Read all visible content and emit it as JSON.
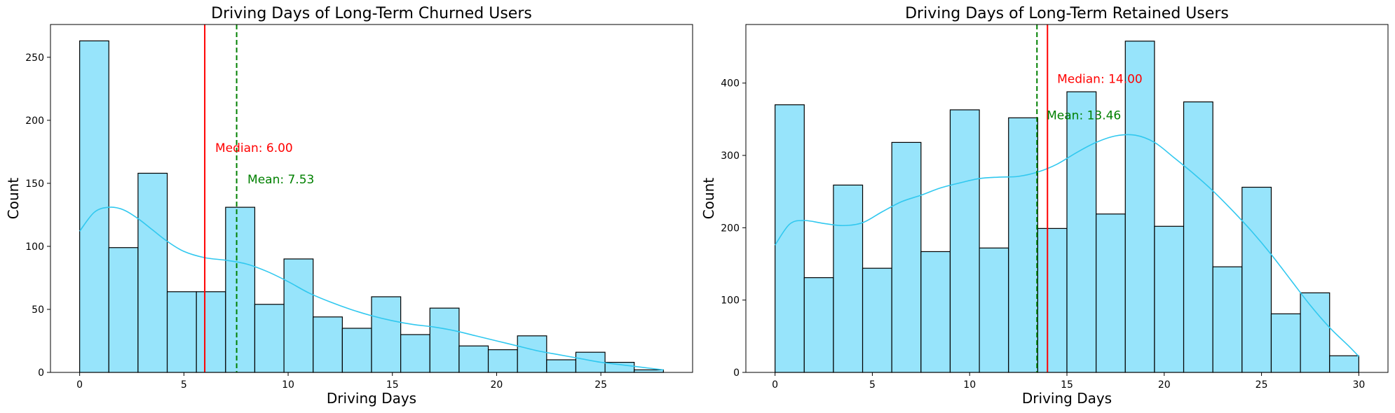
{
  "chart_data": [
    {
      "type": "bar",
      "subtype": "histogram-with-kde",
      "title": "Driving Days of Long-Term Churned Users",
      "xlabel": "Driving Days",
      "ylabel": "Count",
      "xlim": [
        -1.4,
        29.4
      ],
      "ylim": [
        0,
        276
      ],
      "xticks": [
        0,
        5,
        10,
        15,
        20,
        25
      ],
      "yticks": [
        0,
        50,
        100,
        150,
        200,
        250
      ],
      "bin_edges": [
        0,
        1.4,
        2.8,
        4.2,
        5.6,
        7.0,
        8.4,
        9.8,
        11.2,
        12.6,
        14.0,
        15.4,
        16.8,
        18.2,
        19.6,
        21.0,
        22.4,
        23.8,
        25.2,
        26.6,
        28.0
      ],
      "values": [
        263,
        99,
        158,
        64,
        64,
        131,
        54,
        90,
        44,
        35,
        60,
        30,
        51,
        21,
        18,
        29,
        10,
        16,
        8,
        2
      ],
      "kde": {
        "x": [
          0,
          0.7,
          1.4,
          2.1,
          2.8,
          3.5,
          4.2,
          5.0,
          6.0,
          7.0,
          8.0,
          9.0,
          10.0,
          11.0,
          12.0,
          13.0,
          14.0,
          15.0,
          16.0,
          17.0,
          18.0,
          19.0,
          20.0,
          21.0,
          22.0,
          23.0,
          24.0,
          25.0,
          26.0,
          27.0,
          28.0
        ],
        "y": [
          112,
          127,
          131,
          129,
          122,
          113,
          104,
          96,
          91,
          89,
          86,
          80,
          72,
          63,
          56,
          50,
          45,
          41,
          38,
          36,
          33,
          29,
          25,
          21,
          17,
          14,
          11,
          8,
          6,
          4,
          2
        ]
      },
      "median": {
        "value": 6.0,
        "label": "Median: 6.00",
        "color": "#ff0000",
        "text_x": 6.5,
        "text_y": 175
      },
      "mean": {
        "value": 7.53,
        "label": "Mean: 7.53",
        "color": "#008000",
        "text_x": 8.05,
        "text_y": 150
      },
      "bar_color": "#97e4fb",
      "kde_color": "#31c8ef"
    },
    {
      "type": "bar",
      "subtype": "histogram-with-kde",
      "title": "Driving Days of Long-Term Retained Users",
      "xlabel": "Driving Days",
      "ylabel": "Count",
      "xlim": [
        -1.5,
        31.5
      ],
      "ylim": [
        0,
        481
      ],
      "xticks": [
        0,
        5,
        10,
        15,
        20,
        25,
        30
      ],
      "yticks": [
        0,
        100,
        200,
        300,
        400
      ],
      "bin_edges": [
        0,
        1.5,
        3.0,
        4.5,
        6.0,
        7.5,
        9.0,
        10.5,
        12.0,
        13.5,
        15.0,
        16.5,
        18.0,
        19.5,
        21.0,
        22.5,
        24.0,
        25.5,
        27.0,
        28.5,
        30.0
      ],
      "values": [
        370,
        131,
        259,
        144,
        318,
        167,
        363,
        172,
        352,
        199,
        388,
        219,
        458,
        202,
        374,
        146,
        256,
        81,
        110,
        23
      ],
      "kde": {
        "x": [
          0,
          0.75,
          1.5,
          2.5,
          3.5,
          4.5,
          5.5,
          6.5,
          7.5,
          8.5,
          9.5,
          10.5,
          11.5,
          12.5,
          13.5,
          14.5,
          15.5,
          16.5,
          17.5,
          18.5,
          19.5,
          20.5,
          21.5,
          22.5,
          23.5,
          24.5,
          25.5,
          26.5,
          27.5,
          28.5,
          29.5,
          30
        ],
        "y": [
          176,
          205,
          210,
          206,
          203,
          207,
          222,
          236,
          245,
          255,
          262,
          268,
          270,
          271,
          277,
          288,
          304,
          318,
          327,
          328,
          318,
          297,
          275,
          251,
          224,
          195,
          163,
          128,
          93,
          62,
          36,
          22
        ]
      },
      "median": {
        "value": 14.0,
        "label": "Median: 14.00",
        "color": "#ff0000",
        "text_x": 14.5,
        "text_y": 400
      },
      "mean": {
        "value": 13.46,
        "label": "Mean: 13.46",
        "color": "#008000",
        "text_x": 13.96,
        "text_y": 350
      },
      "bar_color": "#97e4fb",
      "kde_color": "#31c8ef"
    }
  ]
}
